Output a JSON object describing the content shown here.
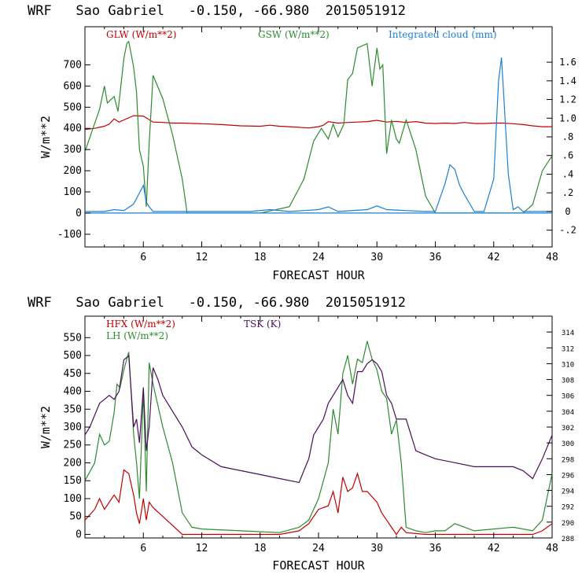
{
  "chart_data": [
    {
      "type": "line",
      "title": "WRF   Sao Gabriel   -0.150, -66.980  2015051912",
      "xlabel": "FORECAST HOUR",
      "ylabel": "W/m**2",
      "y2label": "Integrated cloud (mm)",
      "xlim": [
        0,
        48
      ],
      "ylim": [
        -160,
        880
      ],
      "y2lim": [
        -0.38,
        1.98
      ],
      "xticks": [
        "6",
        "12",
        "18",
        "24",
        "30",
        "36",
        "42",
        "48"
      ],
      "yticks": [
        "-100",
        "0",
        "100",
        "200",
        "300",
        "400",
        "500",
        "600",
        "700"
      ],
      "y2ticks": [
        "-.2",
        "0",
        ".2",
        ".4",
        ".6",
        ".8",
        "1.0",
        "1.2",
        "1.4",
        "1.6"
      ],
      "series": [
        {
          "name": "GLW (W/m**2)",
          "color": "#c00000",
          "axis": "left",
          "x": [
            0,
            1,
            2,
            2.5,
            3,
            3.5,
            4,
            5,
            6,
            7,
            8,
            9,
            10,
            12,
            14,
            16,
            18,
            19,
            20,
            21,
            22,
            23,
            24,
            24.5,
            25,
            26,
            27,
            28,
            29,
            30,
            31,
            32,
            33,
            34,
            35,
            36,
            37,
            38,
            39,
            40,
            41,
            42,
            43,
            44,
            45,
            46,
            47,
            48
          ],
          "values": [
            395,
            400,
            410,
            420,
            445,
            430,
            440,
            460,
            458,
            430,
            428,
            425,
            425,
            422,
            418,
            412,
            410,
            415,
            410,
            408,
            405,
            402,
            408,
            415,
            432,
            425,
            428,
            430,
            432,
            438,
            430,
            433,
            428,
            432,
            425,
            423,
            425,
            423,
            428,
            423,
            423,
            425,
            425,
            422,
            418,
            412,
            408,
            408
          ]
        },
        {
          "name": "GSW (W/m**2)",
          "color": "#2e8b2e",
          "axis": "left",
          "x": [
            0,
            1.5,
            2,
            2.3,
            3,
            3.4,
            4,
            4.3,
            4.5,
            5,
            5.3,
            5.6,
            6,
            6.3,
            6.6,
            7,
            8,
            9,
            10,
            10.5,
            18,
            21,
            22.5,
            23.5,
            24.3,
            25,
            25.5,
            26,
            26.6,
            27,
            27.5,
            28,
            29,
            29.5,
            30,
            30.3,
            30.6,
            31,
            31.5,
            32,
            32.3,
            33,
            34,
            35,
            36,
            37,
            38,
            42,
            45,
            46,
            47,
            48
          ],
          "values": [
            290,
            490,
            600,
            520,
            550,
            480,
            730,
            800,
            810,
            690,
            570,
            300,
            220,
            30,
            330,
            650,
            540,
            370,
            160,
            0,
            0,
            30,
            160,
            340,
            400,
            350,
            420,
            360,
            420,
            630,
            660,
            780,
            800,
            600,
            780,
            680,
            700,
            280,
            440,
            350,
            330,
            440,
            300,
            80,
            0,
            0,
            0,
            0,
            0,
            40,
            200,
            270
          ]
        },
        {
          "name": "Integrated cloud (mm)",
          "color": "#1a7fd6",
          "axis": "right",
          "x": [
            0,
            2,
            3,
            4,
            5,
            5.5,
            6,
            6.3,
            6.6,
            7,
            8,
            17,
            19,
            21,
            24,
            25,
            26,
            29,
            30,
            31,
            35,
            36,
            37,
            37.5,
            38,
            38.5,
            39,
            40,
            41,
            42,
            42.5,
            42.8,
            43,
            43.5,
            44,
            44.5,
            45,
            48
          ],
          "values": [
            0,
            0,
            0.02,
            0.01,
            0.08,
            0.18,
            0.28,
            0.1,
            0.05,
            0,
            0,
            0,
            0.02,
            0,
            0.02,
            0.05,
            0,
            0.02,
            0.06,
            0.02,
            0,
            0,
            0.3,
            0.5,
            0.45,
            0.28,
            0.18,
            0,
            0,
            0.35,
            1.4,
            1.65,
            1.3,
            0.4,
            0.02,
            0.05,
            0,
            0
          ]
        },
        {
          "name": "zero-line",
          "color": "#1a7fd6",
          "axis": "left",
          "x": [
            0,
            48
          ],
          "values": [
            0,
            0
          ]
        }
      ]
    },
    {
      "type": "line",
      "title": "WRF   Sao Gabriel   -0.150, -66.980  2015051912",
      "xlabel": "FORECAST HOUR",
      "ylabel": "W/m**2",
      "y2label": "TSK (K)",
      "xlim": [
        0,
        48
      ],
      "ylim": [
        -10,
        610
      ],
      "y2lim": [
        288,
        316
      ],
      "xticks": [
        "6",
        "12",
        "18",
        "24",
        "30",
        "36",
        "42",
        "48"
      ],
      "yticks": [
        "0",
        "50",
        "100",
        "150",
        "200",
        "250",
        "300",
        "350",
        "400",
        "450",
        "500",
        "550"
      ],
      "y2ticks": [
        "288",
        "290",
        "292",
        "294",
        "296",
        "298",
        "300",
        "302",
        "304",
        "306",
        "308",
        "310",
        "312",
        "314"
      ],
      "series": [
        {
          "name": "HFX (W/m**2)",
          "color": "#c00000",
          "axis": "left",
          "x": [
            0,
            1,
            1.5,
            2,
            3,
            3.5,
            4,
            4.5,
            5,
            5.3,
            5.6,
            6,
            6.3,
            6.6,
            7,
            8,
            9,
            10,
            12,
            16,
            20,
            22,
            23,
            24,
            25,
            25.5,
            26,
            26.5,
            27,
            27.5,
            28,
            28.5,
            29,
            30,
            30.5,
            31,
            32,
            32.5,
            33,
            35,
            40,
            46,
            47,
            48
          ],
          "values": [
            40,
            70,
            100,
            70,
            110,
            90,
            180,
            170,
            110,
            60,
            30,
            100,
            40,
            90,
            75,
            50,
            25,
            0,
            0,
            0,
            0,
            10,
            30,
            70,
            80,
            120,
            60,
            160,
            120,
            130,
            170,
            120,
            120,
            90,
            60,
            40,
            0,
            20,
            5,
            0,
            0,
            0,
            10,
            30
          ]
        },
        {
          "name": "LH (W/m**2)",
          "color": "#2e8b2e",
          "axis": "left",
          "x": [
            0,
            1,
            1.5,
            2,
            2.5,
            3,
            3.3,
            3.6,
            4,
            4.5,
            5,
            5.3,
            5.6,
            6,
            6.3,
            6.6,
            7,
            8,
            9,
            10,
            11,
            12,
            16,
            20,
            22,
            23,
            24,
            25,
            25.5,
            26,
            26.5,
            27,
            27.5,
            28,
            28.5,
            29,
            29.5,
            30,
            30.5,
            31,
            31.5,
            32,
            32.5,
            33,
            34,
            35,
            36,
            37,
            38,
            40,
            42,
            44,
            46,
            47,
            48
          ],
          "values": [
            150,
            200,
            280,
            250,
            260,
            340,
            420,
            410,
            460,
            510,
            280,
            200,
            100,
            400,
            120,
            480,
            420,
            300,
            200,
            60,
            20,
            15,
            10,
            5,
            20,
            40,
            100,
            200,
            350,
            280,
            450,
            500,
            420,
            490,
            480,
            540,
            490,
            460,
            400,
            380,
            280,
            320,
            200,
            20,
            10,
            5,
            10,
            10,
            30,
            10,
            15,
            20,
            10,
            40,
            170
          ]
        },
        {
          "name": "TSK (K)",
          "color": "#4b0f5a",
          "axis": "right",
          "x": [
            0,
            0.5,
            1,
            1.5,
            2,
            2.5,
            3,
            3.5,
            4,
            4.5,
            5,
            5.3,
            5.6,
            6,
            6.3,
            6.6,
            7,
            7.5,
            8,
            9,
            10,
            11,
            12,
            14,
            16,
            18,
            20,
            22,
            22.5,
            23,
            23.5,
            24,
            24.5,
            25,
            25.5,
            26,
            26.5,
            27,
            27.5,
            28,
            28.5,
            29,
            29.5,
            30,
            30.5,
            31,
            31.5,
            32,
            32.5,
            33,
            34,
            35,
            36,
            38,
            40,
            42,
            44,
            45,
            46,
            47,
            48
          ],
          "values": [
            301,
            302,
            303.5,
            305,
            305.5,
            306,
            305.5,
            306.5,
            310.5,
            311,
            302,
            303,
            300,
            307,
            299,
            302,
            309.5,
            308,
            306,
            304,
            302,
            299.5,
            298.5,
            297,
            296.5,
            296,
            295.5,
            295,
            296.5,
            298,
            301,
            302,
            303,
            305,
            306,
            307,
            308,
            306,
            305,
            309,
            309,
            310,
            310.5,
            310,
            309,
            306,
            305,
            303,
            303,
            303,
            299,
            298.5,
            298,
            297.5,
            297,
            297,
            297,
            296.5,
            295.5,
            298,
            301
          ]
        }
      ]
    }
  ]
}
